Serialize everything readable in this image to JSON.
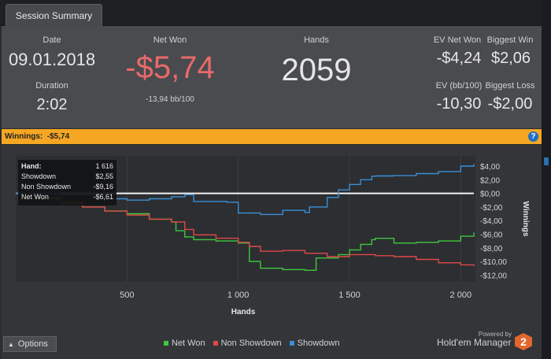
{
  "tab": {
    "label": "Session Summary"
  },
  "summary": {
    "date_label": "Date",
    "date_value": "09.01.2018",
    "duration_label": "Duration",
    "duration_value": "2:02",
    "netwon_label": "Net Won",
    "netwon_value": "-$5,74",
    "netwon_bb": "-13,94 bb/100",
    "hands_label": "Hands",
    "hands_value": "2059",
    "ev_net_label": "EV Net Won",
    "ev_net_value": "-$4,24",
    "biggest_win_label": "Biggest Win",
    "biggest_win_value": "$2,06",
    "ev_bb_label": "EV (bb/100)",
    "ev_bb_value": "-10,30",
    "biggest_loss_label": "Biggest Loss",
    "biggest_loss_value": "-$2,00"
  },
  "winnings_bar": {
    "text": "Winnings:  -$5,74",
    "help": "?"
  },
  "tooltip": {
    "rows": [
      {
        "k": "Hand:",
        "v": "1 616"
      },
      {
        "k": "Showdown",
        "v": "$2,55"
      },
      {
        "k": "Non Showdown",
        "v": "-$9,16"
      },
      {
        "k": "Net Won",
        "v": "-$6,61"
      }
    ]
  },
  "footer": {
    "options": "Options",
    "options_icon": "caret-up-icon",
    "powered": "Powered by",
    "brand": "Hold'em Manager",
    "brand_logo": "2"
  },
  "colors": {
    "net_won": "#3ec83e",
    "non_showdown": "#e04848",
    "showdown": "#3a8fd8",
    "accent": "#f5a623"
  },
  "chart_data": {
    "type": "line",
    "xlabel": "Hands",
    "ylabel": "Winnings",
    "x_ticks": [
      500,
      1000,
      1500,
      2000
    ],
    "x_tick_labels": [
      "500",
      "1 000",
      "1 500",
      "2 000"
    ],
    "y_ticks": [
      4,
      2,
      0,
      -2,
      -4,
      -6,
      -8,
      -10,
      -12
    ],
    "y_tick_labels": [
      "$4,00",
      "$2,00",
      "$0,00",
      "-$2,00",
      "-$4,00",
      "-$6,00",
      "-$8,00",
      "-$10,00",
      "-$12,00"
    ],
    "xlim": [
      0,
      2059
    ],
    "ylim": [
      -13,
      5.5
    ],
    "legend": "bottom",
    "series": [
      {
        "name": "Net Won",
        "color": "#3ec83e",
        "points": [
          [
            0,
            0
          ],
          [
            100,
            -0.8
          ],
          [
            200,
            -1.5
          ],
          [
            300,
            -2.0
          ],
          [
            400,
            -2.6
          ],
          [
            500,
            -3.0
          ],
          [
            600,
            -3.8
          ],
          [
            700,
            -4.2
          ],
          [
            720,
            -5.5
          ],
          [
            760,
            -6.4
          ],
          [
            800,
            -6.8
          ],
          [
            900,
            -7.0
          ],
          [
            1000,
            -7.3
          ],
          [
            1050,
            -10.0
          ],
          [
            1100,
            -11.0
          ],
          [
            1200,
            -11.2
          ],
          [
            1300,
            -11.3
          ],
          [
            1350,
            -9.5
          ],
          [
            1450,
            -9.0
          ],
          [
            1500,
            -8.3
          ],
          [
            1550,
            -7.5
          ],
          [
            1600,
            -6.8
          ],
          [
            1616,
            -6.61
          ],
          [
            1700,
            -7.3
          ],
          [
            1800,
            -7.2
          ],
          [
            1900,
            -7.0
          ],
          [
            2000,
            -6.3
          ],
          [
            2059,
            -5.74
          ]
        ]
      },
      {
        "name": "Non Showdown",
        "color": "#e04848",
        "points": [
          [
            0,
            0
          ],
          [
            100,
            -0.6
          ],
          [
            200,
            -1.3
          ],
          [
            300,
            -2.0
          ],
          [
            400,
            -2.6
          ],
          [
            500,
            -3.2
          ],
          [
            600,
            -3.8
          ],
          [
            700,
            -4.2
          ],
          [
            760,
            -5.3
          ],
          [
            800,
            -6.1
          ],
          [
            900,
            -6.6
          ],
          [
            1000,
            -7.2
          ],
          [
            1050,
            -7.8
          ],
          [
            1100,
            -8.5
          ],
          [
            1200,
            -8.4
          ],
          [
            1300,
            -8.8
          ],
          [
            1400,
            -9.3
          ],
          [
            1500,
            -9.0
          ],
          [
            1600,
            -9.0
          ],
          [
            1616,
            -9.16
          ],
          [
            1700,
            -9.3
          ],
          [
            1800,
            -9.7
          ],
          [
            1900,
            -10.2
          ],
          [
            2000,
            -10.5
          ],
          [
            2059,
            -10.7
          ]
        ]
      },
      {
        "name": "Showdown",
        "color": "#3a8fd8",
        "points": [
          [
            0,
            0
          ],
          [
            200,
            -0.3
          ],
          [
            400,
            -0.8
          ],
          [
            500,
            -1.0
          ],
          [
            600,
            -0.8
          ],
          [
            700,
            -0.5
          ],
          [
            760,
            -0.2
          ],
          [
            800,
            -1.2
          ],
          [
            950,
            -1.3
          ],
          [
            1000,
            -2.9
          ],
          [
            1100,
            -3.1
          ],
          [
            1200,
            -2.5
          ],
          [
            1300,
            -2.8
          ],
          [
            1320,
            -2.0
          ],
          [
            1400,
            -0.6
          ],
          [
            1450,
            0.5
          ],
          [
            1500,
            1.3
          ],
          [
            1550,
            2.0
          ],
          [
            1600,
            2.5
          ],
          [
            1616,
            2.55
          ],
          [
            1700,
            2.6
          ],
          [
            1800,
            2.9
          ],
          [
            1900,
            3.2
          ],
          [
            2000,
            4.0
          ],
          [
            2059,
            4.3
          ]
        ]
      }
    ]
  }
}
